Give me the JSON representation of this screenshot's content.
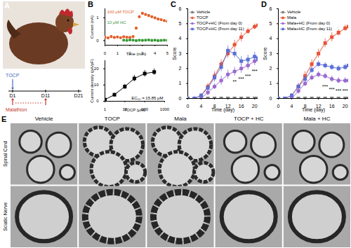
{
  "chart_data": [
    {
      "panel": "B",
      "type": "scatter",
      "x_label": "Time (min)",
      "y_label": "Current (nA)",
      "xlim": [
        0,
        5
      ],
      "xticks": [
        0,
        1,
        2,
        3,
        4,
        5
      ],
      "ylim": [
        -0.2,
        1.4
      ],
      "yticks": [
        0,
        1
      ],
      "series": [
        {
          "name": "100 μM TOCP",
          "color": "#e0602a",
          "marker": "circle",
          "x": [
            0,
            0.25,
            0.5,
            0.75,
            1,
            1.25,
            1.5,
            1.75,
            2,
            2.25,
            2.5,
            2.75,
            3,
            3.25,
            3.5,
            3.75,
            4,
            4.25,
            4.5,
            4.75,
            5
          ],
          "values": [
            0.15,
            0.12,
            0.18,
            0.14,
            0.16,
            0.13,
            0.17,
            0.15,
            0.14,
            0.18,
            0.55,
            1.05,
            1.2,
            1.15,
            1.1,
            1.05,
            1.0,
            0.95,
            0.92,
            0.88,
            0.85
          ]
        },
        {
          "name": "10 μM HC",
          "color": "#3a9a3a",
          "marker": "circle",
          "x": [
            1.5,
            1.75,
            2,
            2.25,
            2.5,
            2.75,
            3,
            3.25,
            3.5,
            3.75,
            4,
            4.25,
            4.5,
            4.75,
            5
          ],
          "values": [
            0.02,
            0.01,
            0.03,
            0.02,
            0.0,
            0.02,
            0.01,
            0.02,
            0.03,
            0.01,
            0.02,
            0.0,
            0.01,
            0.02,
            0.01
          ]
        }
      ]
    },
    {
      "type": "line",
      "log": "x",
      "x_label": "TOCP (μM)",
      "y_label": "Current density (pA/pF)",
      "xlim": [
        1,
        1000
      ],
      "xticks": [
        1,
        10,
        100,
        1000
      ],
      "ylim": [
        0,
        25
      ],
      "yticks": [
        0,
        10,
        20
      ],
      "annotations": [
        {
          "text": "EC₅₀ = 15.85 μM"
        }
      ],
      "series": [
        {
          "color": "#000000",
          "marker": "square",
          "x": [
            1,
            3,
            10,
            30,
            100,
            300
          ],
          "values": [
            1,
            4,
            9,
            14,
            17,
            18
          ],
          "errors": [
            0.5,
            1,
            1.5,
            2,
            2,
            2
          ]
        }
      ]
    },
    {
      "panel": "C",
      "type": "line",
      "x_label": "Time (day)",
      "y_label": "Score",
      "x": [
        0,
        2,
        4,
        6,
        8,
        10,
        12,
        14,
        16,
        18,
        20,
        21
      ],
      "xlim": [
        0,
        21
      ],
      "xticks": [
        0,
        4,
        8,
        12,
        16,
        20
      ],
      "ylim": [
        0,
        6
      ],
      "yticks": [
        0,
        1,
        2,
        3,
        4,
        5,
        6
      ],
      "series": [
        {
          "name": "Vehicle",
          "color": "#808080",
          "marker": "square",
          "values": [
            0,
            0,
            0,
            0,
            0,
            0,
            0,
            0,
            0,
            0,
            0,
            0
          ]
        },
        {
          "name": "TOCP",
          "color": "#e8553a",
          "marker": "circle",
          "values": [
            0,
            0,
            0.2,
            0.8,
            1.5,
            2.3,
            3.0,
            3.6,
            4.1,
            4.5,
            4.8,
            4.9
          ],
          "errors": [
            0,
            0,
            0.1,
            0.2,
            0.3,
            0.3,
            0.3,
            0.3,
            0.3,
            0.2,
            0.2,
            0.2
          ]
        },
        {
          "name": "TOCP+HC (From day 0)",
          "color": "#9b6bcf",
          "marker": "circle",
          "values": [
            0,
            0,
            0,
            0.4,
            0.8,
            1.2,
            1.6,
            1.8,
            2.0,
            2.2,
            2.5,
            2.6
          ],
          "errors": [
            0,
            0,
            0,
            0.2,
            0.2,
            0.3,
            0.3,
            0.3,
            0.3,
            0.3,
            0.3,
            0.3
          ]
        },
        {
          "name": "TOCP+HC (From day 11)",
          "color": "#5b6fd6",
          "marker": "square",
          "values": [
            0,
            0,
            0.2,
            0.7,
            1.4,
            2.1,
            3.2,
            3.0,
            2.5,
            2.6,
            2.8,
            2.7
          ],
          "errors": [
            0,
            0,
            0.1,
            0.2,
            0.3,
            0.3,
            0.3,
            0.3,
            0.3,
            0.3,
            0.3,
            0.3
          ]
        }
      ],
      "annotations": [
        {
          "x": 14,
          "y": 1.1,
          "text": "**"
        },
        {
          "x": 16,
          "y": 1.3,
          "text": "***"
        },
        {
          "x": 18,
          "y": 1.5,
          "text": "***"
        },
        {
          "x": 20,
          "y": 1.8,
          "text": "***"
        }
      ]
    },
    {
      "panel": "D",
      "type": "line",
      "x_label": "Time (day)",
      "y_label": "Score",
      "x": [
        0,
        2,
        4,
        6,
        8,
        10,
        12,
        14,
        16,
        18,
        20,
        21
      ],
      "xlim": [
        0,
        21
      ],
      "xticks": [
        0,
        4,
        8,
        12,
        16,
        20
      ],
      "ylim": [
        0,
        6
      ],
      "yticks": [
        0,
        1,
        2,
        3,
        4,
        5,
        6
      ],
      "series": [
        {
          "name": "Vehicle",
          "color": "#808080",
          "marker": "square",
          "values": [
            0,
            0,
            0,
            0,
            0,
            0,
            0,
            0,
            0,
            0,
            0,
            0
          ]
        },
        {
          "name": "Mala",
          "color": "#e8553a",
          "marker": "square",
          "values": [
            0,
            0,
            0.2,
            0.8,
            1.5,
            2.3,
            3.0,
            3.7,
            4.1,
            4.4,
            4.7,
            4.8
          ],
          "errors": [
            0,
            0,
            0.1,
            0.2,
            0.3,
            0.3,
            0.3,
            0.3,
            0.3,
            0.2,
            0.2,
            0.2
          ]
        },
        {
          "name": "Mala+HC (From day 0)",
          "color": "#9b6bcf",
          "marker": "circle",
          "values": [
            0,
            0,
            0,
            0.5,
            1.0,
            1.4,
            1.6,
            1.5,
            1.3,
            1.2,
            1.2,
            1.2
          ],
          "errors": [
            0,
            0,
            0,
            0.2,
            0.2,
            0.2,
            0.2,
            0.2,
            0.2,
            0.2,
            0.2,
            0.2
          ]
        },
        {
          "name": "Mala+HC (From day 11)",
          "color": "#5b6fd6",
          "marker": "square",
          "values": [
            0,
            0,
            0.2,
            0.8,
            1.3,
            1.9,
            2.3,
            2.2,
            2.1,
            2.0,
            2.1,
            2.2
          ],
          "errors": [
            0,
            0,
            0.1,
            0.2,
            0.2,
            0.2,
            0.2,
            0.2,
            0.2,
            0.2,
            0.2,
            0.2
          ]
        }
      ],
      "annotations": [
        {
          "x": 14,
          "y": 0.8,
          "text": "***"
        },
        {
          "x": 16,
          "y": 0.6,
          "text": "***"
        },
        {
          "x": 18,
          "y": 0.5,
          "text": "***"
        },
        {
          "x": 20,
          "y": 0.5,
          "text": "***"
        }
      ]
    }
  ],
  "panel_a": {
    "panel": "A",
    "day_labels": [
      "D1",
      "D11",
      "D21"
    ],
    "agents": [
      {
        "name": "TOCP",
        "color": "#4a6bbf",
        "at": [
          "D1"
        ]
      },
      {
        "name": "Malathion",
        "color": "#c0392b",
        "at": [
          "D1",
          "D11"
        ]
      }
    ]
  },
  "panel_e": {
    "panel": "E",
    "columns": [
      "Vehicle",
      "TOCP",
      "Mala",
      "TOCP + HC",
      "Mala + HC"
    ],
    "rows": [
      "Spinal Cord",
      "Sciatic Nerve"
    ]
  }
}
